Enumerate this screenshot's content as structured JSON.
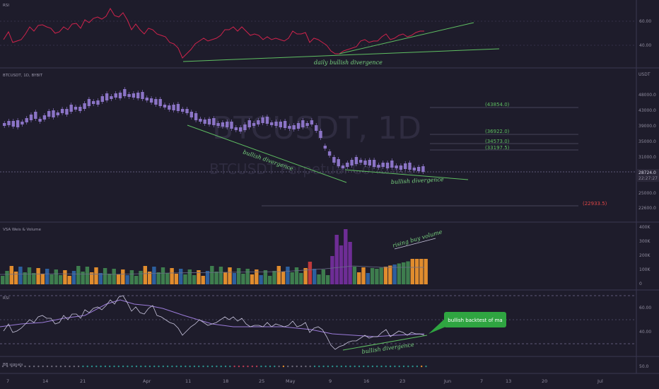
{
  "chart_data": [
    {
      "panel": "top-indicator",
      "type": "line",
      "yticks": [
        "60.00",
        "40.00"
      ],
      "annotations": [
        "daily bullish divergence"
      ],
      "colors": {
        "line": "#d0234c",
        "trendline": "#5fbf62"
      }
    },
    {
      "panel": "price",
      "type": "candlestick",
      "symbol": "BTCUSDT, 1D",
      "watermark": "BTCUSDT, 1D",
      "watermark_sub": "BTCUSDT Perpetual Contract",
      "yticks": [
        "48000.0",
        "43000.0",
        "39000.0",
        "35000.0",
        "31000.0",
        "25000.0",
        "22600.0"
      ],
      "currency": "USDT",
      "last_price": "28724.0",
      "countdown": "22:27:27",
      "levels": [
        {
          "label": "(43854.0)",
          "value": 43854.0,
          "color": "#5fbf62"
        },
        {
          "label": "(36922.0)",
          "value": 36922.0,
          "color": "#5fbf62"
        },
        {
          "label": "(34573.0)",
          "value": 34573.0,
          "color": "#5fbf62"
        },
        {
          "label": "(33197.5)",
          "value": 33197.5,
          "color": "#5fbf62"
        },
        {
          "label": "(22933.5)",
          "value": 22933.5,
          "color": "#e04646"
        }
      ],
      "annotations": [
        "bullish divergence",
        "bullish divergence"
      ],
      "colors": {
        "candle": "#8b74c6"
      }
    },
    {
      "panel": "volume",
      "type": "bar",
      "title": "VSA Weis & Volume",
      "yticks": [
        "400K",
        "300K",
        "200K",
        "100K",
        "0"
      ],
      "annotations": [
        "rising buy volume"
      ],
      "colors": {
        "green": "#3e7d4e",
        "orange": "#e08c2e",
        "blue": "#2d5f9e",
        "purple": "#6e2d96",
        "red": "#c0393b"
      }
    },
    {
      "panel": "rsi",
      "type": "line",
      "yticks": [
        "60.00",
        "40.00"
      ],
      "annotations": [
        "bullish divergence"
      ],
      "callout": "bullish backtest of ma",
      "colors": {
        "rsi": "#c7c3dc",
        "ma": "#9b7bd9",
        "callout": "#2fa541"
      }
    },
    {
      "panel": "signals",
      "type": "scatter",
      "yticks": [
        "50.0"
      ]
    }
  ],
  "x_axis": {
    "labels": [
      "7",
      "14",
      "21",
      "Apr",
      "11",
      "18",
      "25",
      "May",
      "9",
      "16",
      "23",
      "Jun",
      "7",
      "13",
      "20",
      "Jul"
    ]
  }
}
